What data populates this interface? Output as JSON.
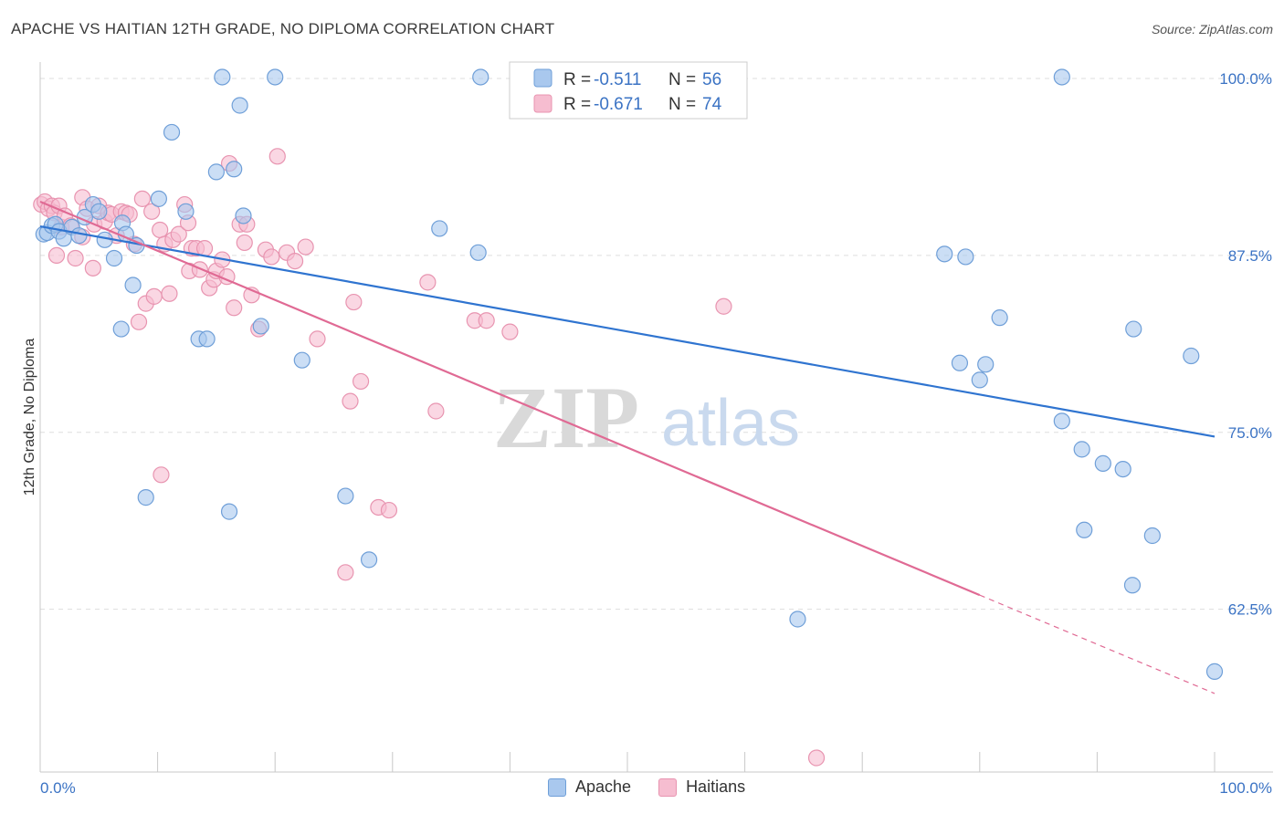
{
  "title": "APACHE VS HAITIAN 12TH GRADE, NO DIPLOMA CORRELATION CHART",
  "source": "Source: ZipAtlas.com",
  "watermark": {
    "zip": "ZIP",
    "atlas": "atlas"
  },
  "legend_stats": {
    "apache": {
      "r_label": "R =",
      "r_value": "-0.511",
      "n_label": "N =",
      "n_value": "56"
    },
    "haitians": {
      "r_label": "R =",
      "r_value": "-0.671",
      "n_label": "N =",
      "n_value": "74"
    }
  },
  "bottom_legend": {
    "apache": "Apache",
    "haitians": "Haitians"
  },
  "colors": {
    "apache_fill": "#a9c8ee",
    "apache_stroke": "#6f9fd8",
    "apache_line": "#2f74d0",
    "haitians_fill": "#f6bdd0",
    "haitians_stroke": "#e894b0",
    "haitians_line": "#e06a94",
    "value_text": "#3b73c4",
    "grid": "#dddddd"
  },
  "chart_data": {
    "type": "scatter",
    "title": "APACHE VS HAITIAN 12TH GRADE, NO DIPLOMA CORRELATION CHART",
    "xlabel": "",
    "ylabel": "12th Grade, No Diploma",
    "x_tick_labels": [
      "0.0%",
      "100.0%"
    ],
    "y_tick_labels": [
      "100.0%",
      "87.5%",
      "75.0%",
      "62.5%"
    ],
    "y_ticks": [
      100.0,
      87.5,
      75.0,
      62.5
    ],
    "xlim": [
      0,
      100
    ],
    "ylim": [
      51.0,
      102.0
    ],
    "grid": true,
    "legend_position": "top-center",
    "series": [
      {
        "name": "Apache",
        "points": [
          [
            0.3,
            89.0
          ],
          [
            0.6,
            89.1
          ],
          [
            1.0,
            89.6
          ],
          [
            1.3,
            89.7
          ],
          [
            1.6,
            89.2
          ],
          [
            2.0,
            88.7
          ],
          [
            2.7,
            89.5
          ],
          [
            3.3,
            88.9
          ],
          [
            3.8,
            90.2
          ],
          [
            4.5,
            91.1
          ],
          [
            5.0,
            90.6
          ],
          [
            5.5,
            88.6
          ],
          [
            6.3,
            87.3
          ],
          [
            6.9,
            82.3
          ],
          [
            7.0,
            89.8
          ],
          [
            7.3,
            89.0
          ],
          [
            7.9,
            85.4
          ],
          [
            8.2,
            88.2
          ],
          [
            9.0,
            70.4
          ],
          [
            10.1,
            91.5
          ],
          [
            11.2,
            96.2
          ],
          [
            12.4,
            90.6
          ],
          [
            13.5,
            81.6
          ],
          [
            14.2,
            81.6
          ],
          [
            15.0,
            93.4
          ],
          [
            15.5,
            100.1
          ],
          [
            16.1,
            69.4
          ],
          [
            16.5,
            93.6
          ],
          [
            17.0,
            98.1
          ],
          [
            17.3,
            90.3
          ],
          [
            18.8,
            82.5
          ],
          [
            20.0,
            100.1
          ],
          [
            22.3,
            80.1
          ],
          [
            26.0,
            70.5
          ],
          [
            28.0,
            66.0
          ],
          [
            34.0,
            89.4
          ],
          [
            37.3,
            87.7
          ],
          [
            37.5,
            100.1
          ],
          [
            43.0,
            100.1
          ],
          [
            64.5,
            61.8
          ],
          [
            77.0,
            87.6
          ],
          [
            78.8,
            87.4
          ],
          [
            78.3,
            79.9
          ],
          [
            80.0,
            78.7
          ],
          [
            80.5,
            79.8
          ],
          [
            81.7,
            83.1
          ],
          [
            87.0,
            75.8
          ],
          [
            87.0,
            100.1
          ],
          [
            88.7,
            73.8
          ],
          [
            88.9,
            68.1
          ],
          [
            90.5,
            72.8
          ],
          [
            92.2,
            72.4
          ],
          [
            93.0,
            64.2
          ],
          [
            93.1,
            82.3
          ],
          [
            94.7,
            67.7
          ],
          [
            98.0,
            80.4
          ],
          [
            100.0,
            58.1
          ]
        ],
        "trend": {
          "x": [
            0,
            100
          ],
          "y": [
            89.55,
            74.7
          ]
        }
      },
      {
        "name": "Haitians",
        "points": [
          [
            0.1,
            91.1
          ],
          [
            0.4,
            91.3
          ],
          [
            0.7,
            90.8
          ],
          [
            1.0,
            91.0
          ],
          [
            1.2,
            90.5
          ],
          [
            1.6,
            91.0
          ],
          [
            1.4,
            87.5
          ],
          [
            1.8,
            89.5
          ],
          [
            2.1,
            90.3
          ],
          [
            2.6,
            89.6
          ],
          [
            3.0,
            87.3
          ],
          [
            3.6,
            88.8
          ],
          [
            3.6,
            91.6
          ],
          [
            4.0,
            90.8
          ],
          [
            4.6,
            89.7
          ],
          [
            4.5,
            86.6
          ],
          [
            5.0,
            91.0
          ],
          [
            5.5,
            89.9
          ],
          [
            5.8,
            90.5
          ],
          [
            6.1,
            90.4
          ],
          [
            6.5,
            88.9
          ],
          [
            6.9,
            90.6
          ],
          [
            7.3,
            90.5
          ],
          [
            7.6,
            90.4
          ],
          [
            8.0,
            88.3
          ],
          [
            8.4,
            82.8
          ],
          [
            8.7,
            91.5
          ],
          [
            9.0,
            84.1
          ],
          [
            9.5,
            90.6
          ],
          [
            9.7,
            84.6
          ],
          [
            10.3,
            72.0
          ],
          [
            10.2,
            89.3
          ],
          [
            10.6,
            88.3
          ],
          [
            11.0,
            84.8
          ],
          [
            11.3,
            88.6
          ],
          [
            11.8,
            89.0
          ],
          [
            12.3,
            91.1
          ],
          [
            12.6,
            89.8
          ],
          [
            12.7,
            86.4
          ],
          [
            12.9,
            88.0
          ],
          [
            13.3,
            88.0
          ],
          [
            13.6,
            86.5
          ],
          [
            14.0,
            88.0
          ],
          [
            14.4,
            85.2
          ],
          [
            14.8,
            85.8
          ],
          [
            15.0,
            86.4
          ],
          [
            15.5,
            87.2
          ],
          [
            15.9,
            86.0
          ],
          [
            16.1,
            94.0
          ],
          [
            16.5,
            83.8
          ],
          [
            17.0,
            89.7
          ],
          [
            17.4,
            88.4
          ],
          [
            17.6,
            89.7
          ],
          [
            18.0,
            84.7
          ],
          [
            18.6,
            82.3
          ],
          [
            19.2,
            87.9
          ],
          [
            19.7,
            87.4
          ],
          [
            20.2,
            94.5
          ],
          [
            21.0,
            87.7
          ],
          [
            21.7,
            87.1
          ],
          [
            22.6,
            88.1
          ],
          [
            23.6,
            81.6
          ],
          [
            26.0,
            65.1
          ],
          [
            26.4,
            77.2
          ],
          [
            26.7,
            84.2
          ],
          [
            27.3,
            78.6
          ],
          [
            28.8,
            69.7
          ],
          [
            29.7,
            69.5
          ],
          [
            33.0,
            85.6
          ],
          [
            33.7,
            76.5
          ],
          [
            37.0,
            82.9
          ],
          [
            38.0,
            82.9
          ],
          [
            40.0,
            82.1
          ],
          [
            58.2,
            83.9
          ],
          [
            66.1,
            52.0
          ]
        ],
        "trend": {
          "x": [
            0,
            80
          ],
          "y": [
            91.3,
            63.5
          ]
        },
        "trend_dashed": {
          "x": [
            80,
            100
          ],
          "y": [
            63.5,
            56.55
          ]
        }
      }
    ]
  }
}
